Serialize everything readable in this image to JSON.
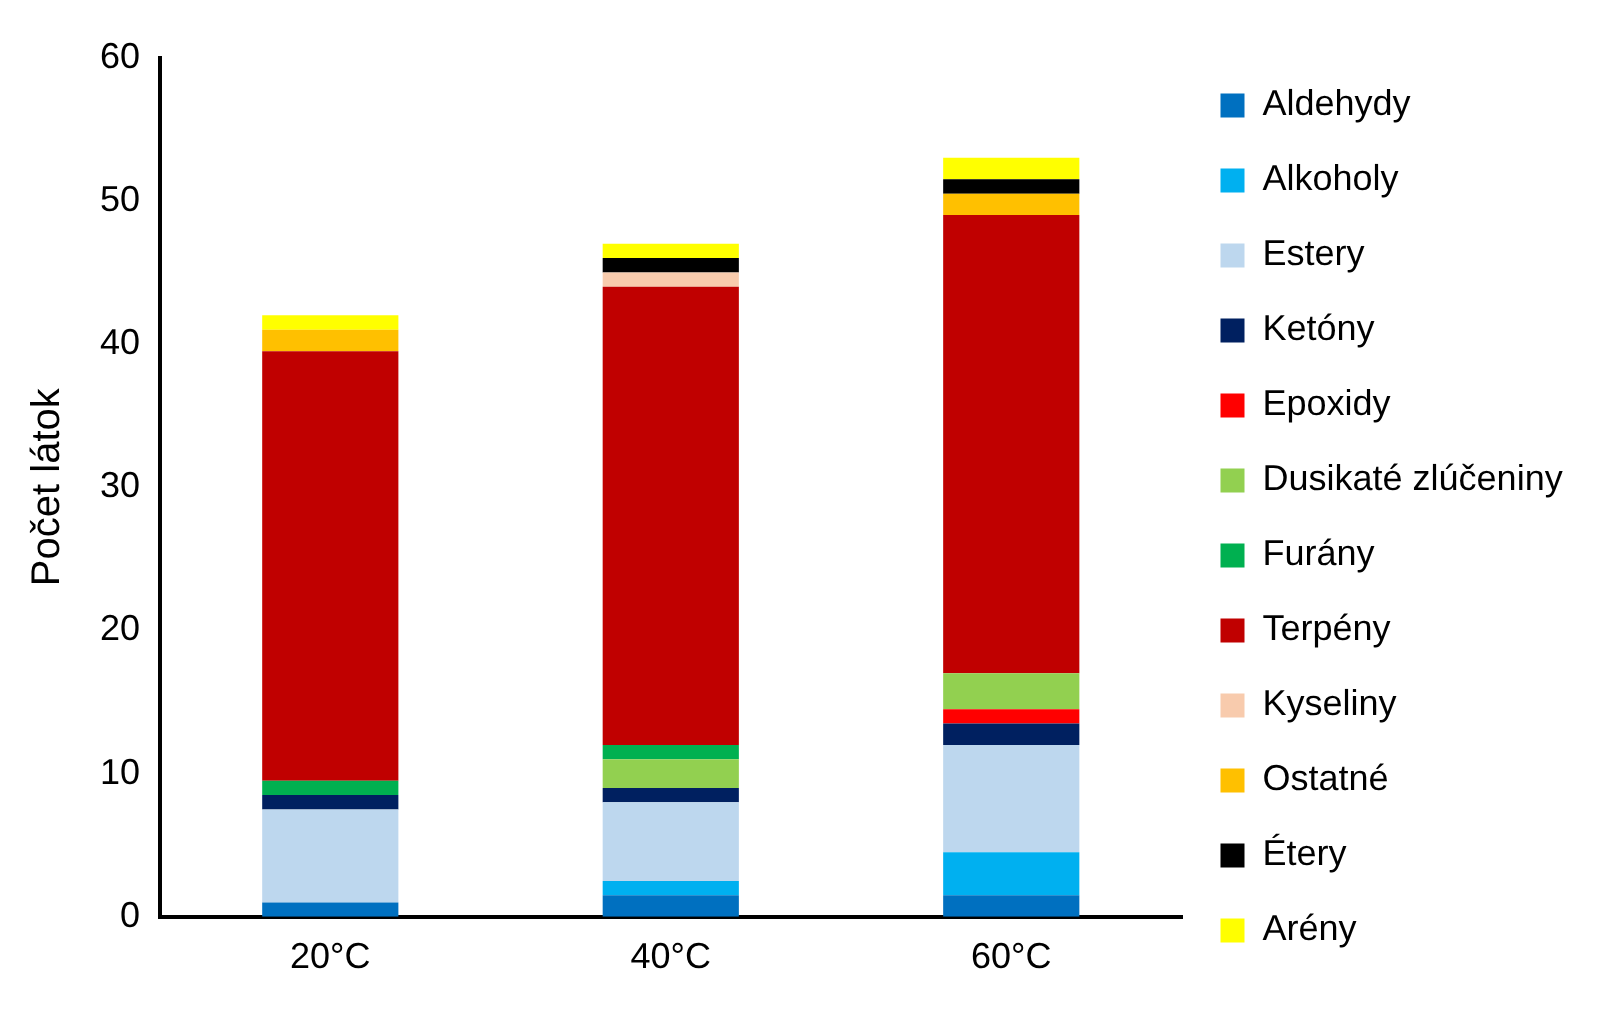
{
  "chart_data": {
    "type": "bar",
    "stacked": true,
    "ylabel": "Počet látok",
    "categories": [
      "20°C",
      "40°C",
      "60°C"
    ],
    "ylim": [
      0,
      60
    ],
    "yticks": [
      0,
      10,
      20,
      30,
      40,
      50,
      60
    ],
    "grid": false,
    "legend": "right",
    "series": [
      {
        "name": "Aldehydy",
        "color": "#0070c0",
        "values": [
          1,
          1.5,
          1.5
        ]
      },
      {
        "name": "Alkoholy",
        "color": "#00b0f0",
        "values": [
          0,
          1,
          3
        ]
      },
      {
        "name": "Estery",
        "color": "#bdd7ee",
        "values": [
          6.5,
          5.5,
          7.5
        ]
      },
      {
        "name": "Ketóny",
        "color": "#002060",
        "values": [
          1,
          1,
          1.5
        ]
      },
      {
        "name": "Epoxidy",
        "color": "#ff0000",
        "values": [
          0,
          0,
          1
        ]
      },
      {
        "name": "Dusikaté zlúčeniny",
        "color": "#92d050",
        "values": [
          0,
          2,
          2.5
        ]
      },
      {
        "name": "Furány",
        "color": "#00b050",
        "values": [
          1,
          1,
          0
        ]
      },
      {
        "name": "Terpény",
        "color": "#c00000",
        "values": [
          30,
          32,
          32
        ]
      },
      {
        "name": "Kyseliny",
        "color": "#f8cbad",
        "values": [
          0,
          1,
          0
        ]
      },
      {
        "name": "Ostatné",
        "color": "#ffc000",
        "values": [
          1.5,
          0,
          1.5
        ]
      },
      {
        "name": "Étery",
        "color": "#000000",
        "values": [
          0,
          1,
          1
        ]
      },
      {
        "name": "Arény",
        "color": "#ffff00",
        "values": [
          1,
          1,
          1.5
        ]
      }
    ]
  }
}
